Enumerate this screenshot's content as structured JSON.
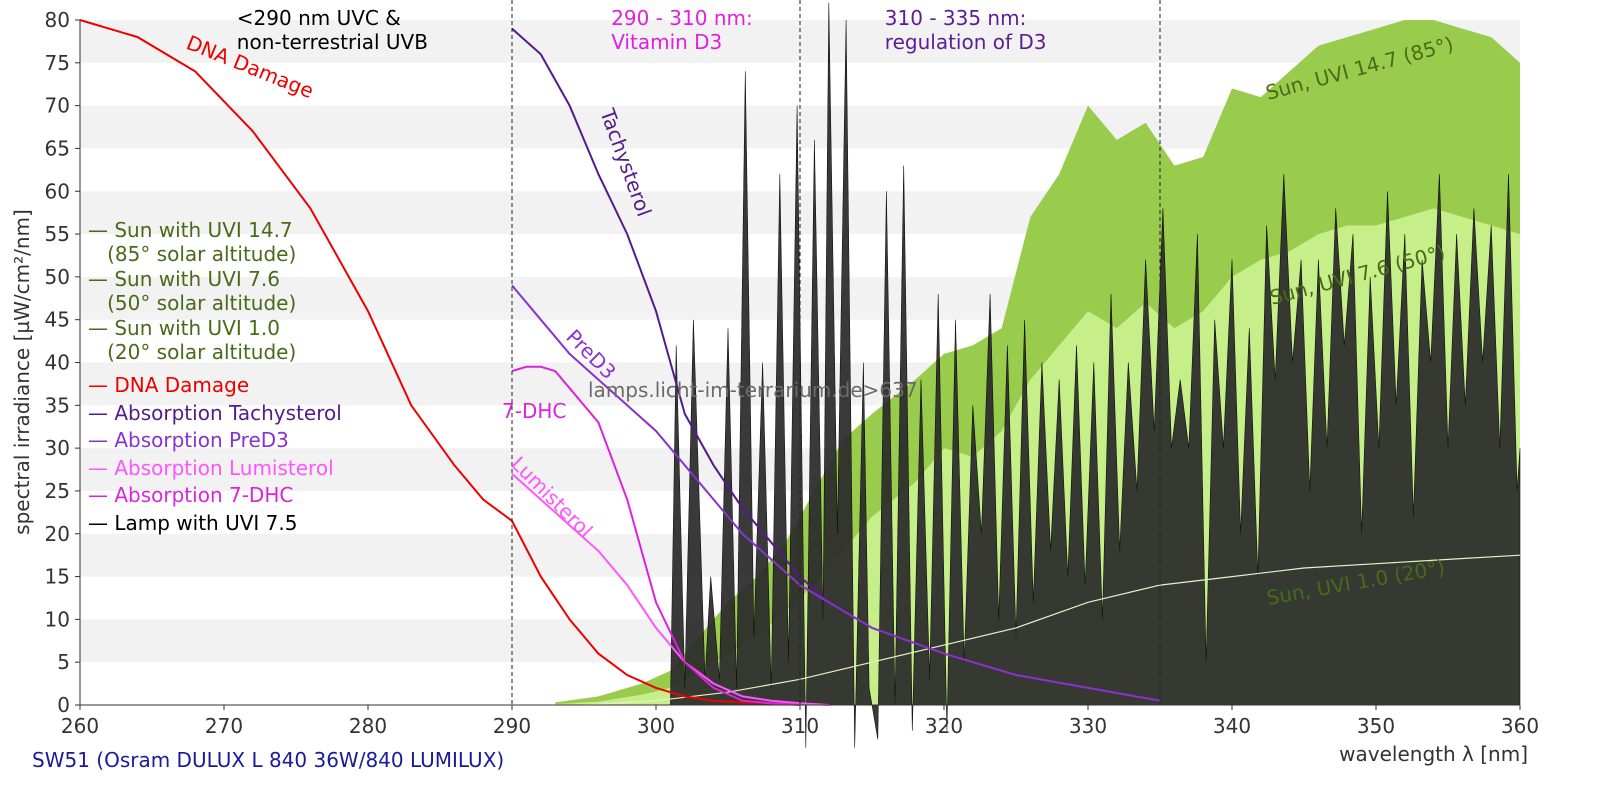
{
  "chart_data": {
    "type": "area",
    "title": "SW51 (Osram DULUX L 840 36W/840 LUMILUX)",
    "xlabel": "wavelength λ [nm]",
    "ylabel": "spectral irradiance [µW/cm²/nm]",
    "xlim": [
      260,
      360
    ],
    "ylim": [
      0,
      80
    ],
    "x_ticks": [
      "260",
      "270",
      "280",
      "290",
      "300",
      "310",
      "320",
      "330",
      "340",
      "350",
      "360"
    ],
    "y_ticks": [
      "0",
      "5",
      "10",
      "15",
      "20",
      "25",
      "30",
      "35",
      "40",
      "45",
      "50",
      "55",
      "60",
      "65",
      "70",
      "75",
      "80"
    ],
    "grid": "horizontal bands",
    "legend_placement": "left",
    "vlines": [
      290,
      310,
      335
    ],
    "watermark": "lamps.licht-im-terrarium.de>637",
    "region_labels": [
      {
        "text": "<290 nm UVC &\nnon-terrestrial UVB",
        "x": 272,
        "color": "#000000"
      },
      {
        "text": "290 - 310 nm:\nVitamin D3",
        "x": 298,
        "color": "#e020e0"
      },
      {
        "text": "310 - 335 nm:\nregulation of D3",
        "x": 317,
        "color": "#5a1e96"
      }
    ],
    "legend": [
      {
        "text": "— Sun with UVI 14.7\n   (85° solar altitude)",
        "color": "#4a6a1a"
      },
      {
        "text": "— Sun with UVI 7.6\n   (50° solar altitude)",
        "color": "#4a6a1a"
      },
      {
        "text": "— Sun with UVI 1.0\n   (20° solar altitude)",
        "color": "#4a6a1a"
      },
      {
        "text": "— DNA Damage",
        "color": "#ee0000"
      },
      {
        "text": "— Absorption Tachysterol",
        "color": "#551a8b"
      },
      {
        "text": "— Absorption PreD3",
        "color": "#8833cc"
      },
      {
        "text": "— Absorption Lumisterol",
        "color": "#ff55ff"
      },
      {
        "text": "— Absorption 7-DHC",
        "color": "#dd22dd"
      },
      {
        "text": "— Lamp with UVI 7.5",
        "color": "#000000"
      }
    ],
    "series": [
      {
        "name": "Sun with UVI 14.7",
        "kind": "area",
        "color": "#99cc4d",
        "label": "Sun, UVI 14.7 (85°)",
        "x": [
          293,
          296,
          299,
          301,
          303,
          305,
          307,
          309,
          311,
          313,
          315,
          318,
          320,
          322,
          324,
          326,
          328,
          330,
          332,
          334,
          336,
          338,
          340,
          342,
          344,
          346,
          348,
          350,
          352,
          354,
          356,
          358,
          360
        ],
        "y": [
          0.3,
          1,
          2.5,
          4,
          8,
          12,
          15,
          19,
          25,
          31,
          34,
          38,
          41,
          42,
          44,
          57,
          62,
          70,
          66,
          68,
          63,
          64,
          72,
          71,
          74,
          77,
          78,
          79,
          80,
          80,
          79,
          78,
          75
        ]
      },
      {
        "name": "Sun with UVI 7.6",
        "kind": "area",
        "color": "#c6ef8a",
        "label": "Sun, UVI 7.6 (50°)",
        "x": [
          293,
          296,
          299,
          301,
          303,
          305,
          307,
          309,
          311,
          313,
          315,
          318,
          320,
          322,
          324,
          326,
          328,
          330,
          332,
          334,
          336,
          338,
          340,
          342,
          344,
          346,
          348,
          350,
          352,
          354,
          356,
          358,
          360
        ],
        "y": [
          0.1,
          0.4,
          1.2,
          2,
          4,
          6,
          8,
          11,
          14,
          18,
          22,
          26,
          30,
          29,
          32,
          38,
          42,
          46,
          44,
          47,
          44,
          46,
          50,
          52,
          53,
          55,
          56,
          56,
          57,
          58,
          57,
          56,
          55
        ]
      },
      {
        "name": "Sun with UVI 1.0",
        "kind": "line",
        "color": "#e8f0c8",
        "label": "Sun, UVI 1.0 (20°)",
        "x": [
          295,
          300,
          305,
          310,
          315,
          320,
          325,
          330,
          335,
          340,
          345,
          350,
          355,
          360
        ],
        "y": [
          0,
          0.5,
          1.5,
          3,
          5,
          7,
          9,
          12,
          14,
          15,
          16,
          16.5,
          17,
          17.5
        ]
      },
      {
        "name": "DNA Damage",
        "kind": "line",
        "color": "#ee0000",
        "label": "DNA Damage",
        "x": [
          260,
          264,
          268,
          272,
          276,
          280,
          283,
          286,
          288,
          290,
          292,
          294,
          296,
          298,
          300,
          302,
          304,
          306,
          308,
          310
        ],
        "y": [
          80,
          78,
          74,
          67,
          58,
          46,
          35,
          28,
          24,
          21.5,
          15,
          10,
          6,
          3.5,
          2,
          1,
          0.5,
          0.3,
          0.2,
          0.1
        ]
      },
      {
        "name": "Absorption Tachysterol",
        "kind": "line",
        "color": "#551a8b",
        "label": "Tachysterol",
        "x": [
          290,
          292,
          294,
          296,
          298,
          300,
          302,
          304,
          306,
          308,
          310,
          312,
          315,
          320,
          325,
          330,
          335
        ],
        "y": [
          79,
          76,
          70,
          62,
          55,
          46,
          34,
          28,
          23,
          19,
          15,
          12,
          9,
          6,
          3.5,
          2,
          0.5
        ]
      },
      {
        "name": "Absorption PreD3",
        "kind": "line",
        "color": "#8833cc",
        "label": "PreD3",
        "x": [
          290,
          292,
          294,
          296,
          298,
          300,
          302,
          304,
          306,
          308,
          310,
          312,
          315,
          320,
          325,
          330,
          335
        ],
        "y": [
          49,
          45,
          41,
          38,
          35,
          32,
          28,
          24,
          20,
          17,
          14,
          12,
          9,
          6,
          3.5,
          2,
          0.5
        ]
      },
      {
        "name": "Absorption Lumisterol",
        "kind": "line",
        "color": "#ff55ff",
        "label": "Lumisterol",
        "x": [
          290,
          292,
          294,
          296,
          298,
          300,
          302,
          304,
          306,
          308,
          310,
          312
        ],
        "y": [
          27,
          24,
          21,
          18,
          14,
          9,
          5,
          2.5,
          1,
          0.5,
          0.2,
          0
        ]
      },
      {
        "name": "Absorption 7-DHC",
        "kind": "line",
        "color": "#dd22dd",
        "label": "7-DHC",
        "x": [
          290,
          291,
          292,
          293,
          294,
          296,
          298,
          300,
          302,
          304,
          306,
          308,
          310
        ],
        "y": [
          39,
          39.5,
          39.5,
          39,
          37,
          33,
          24,
          12,
          5,
          2,
          0.5,
          0.2,
          0
        ]
      },
      {
        "name": "Lamp with UVI 7.5",
        "kind": "spiky-area",
        "color": "#2a2a2a",
        "label": "",
        "x": [
          301,
          301.4,
          302,
          302.6,
          303.4,
          303.8,
          304.4,
          305,
          305.6,
          306.2,
          306.8,
          307.4,
          308,
          308.6,
          309.2,
          309.8,
          310.4,
          311,
          311.6,
          312,
          312.6,
          313.2,
          313.8,
          314.4,
          314.8,
          315.4,
          316,
          316.6,
          317.2,
          317.8,
          318.4,
          319,
          319.6,
          320.2,
          320.8,
          321.4,
          322,
          322.6,
          323.2,
          323.8,
          324.4,
          325,
          325.6,
          326.2,
          326.8,
          327.4,
          328,
          328.6,
          329.2,
          329.8,
          330.4,
          331,
          331.6,
          332.2,
          332.8,
          333.4,
          334,
          334.6,
          335.2,
          335.8,
          336.4,
          337,
          337.6,
          338.2,
          338.8,
          339.4,
          340,
          340.6,
          341.2,
          341.8,
          342.4,
          343,
          343.6,
          344.2,
          344.8,
          345.4,
          346,
          346.6,
          347.2,
          347.8,
          348.4,
          349,
          349.6,
          350.2,
          350.8,
          351.4,
          352,
          352.6,
          353.2,
          353.8,
          354.4,
          355,
          355.6,
          356.2,
          356.8,
          357.4,
          358,
          358.6,
          359.2,
          359.8,
          360
        ],
        "y": [
          0,
          42,
          2,
          45,
          3,
          15,
          3,
          44,
          2,
          74,
          8,
          40,
          2,
          62,
          5,
          70,
          -5,
          66,
          10,
          82,
          20,
          80,
          -5,
          40,
          2,
          -4,
          60,
          0,
          63,
          -3,
          38,
          3,
          48,
          -3,
          45,
          5,
          35,
          20,
          48,
          10,
          42,
          8,
          45,
          12,
          40,
          18,
          38,
          15,
          42,
          14,
          40,
          10,
          48,
          18,
          40,
          25,
          52,
          32,
          58,
          30,
          38,
          30,
          55,
          5,
          45,
          30,
          52,
          20,
          44,
          15,
          56,
          38,
          62,
          40,
          52,
          25,
          52,
          30,
          58,
          42,
          55,
          20,
          50,
          30,
          60,
          35,
          55,
          22,
          52,
          40,
          62,
          30,
          55,
          35,
          58,
          40,
          56,
          30,
          62,
          25,
          30
        ]
      }
    ]
  }
}
